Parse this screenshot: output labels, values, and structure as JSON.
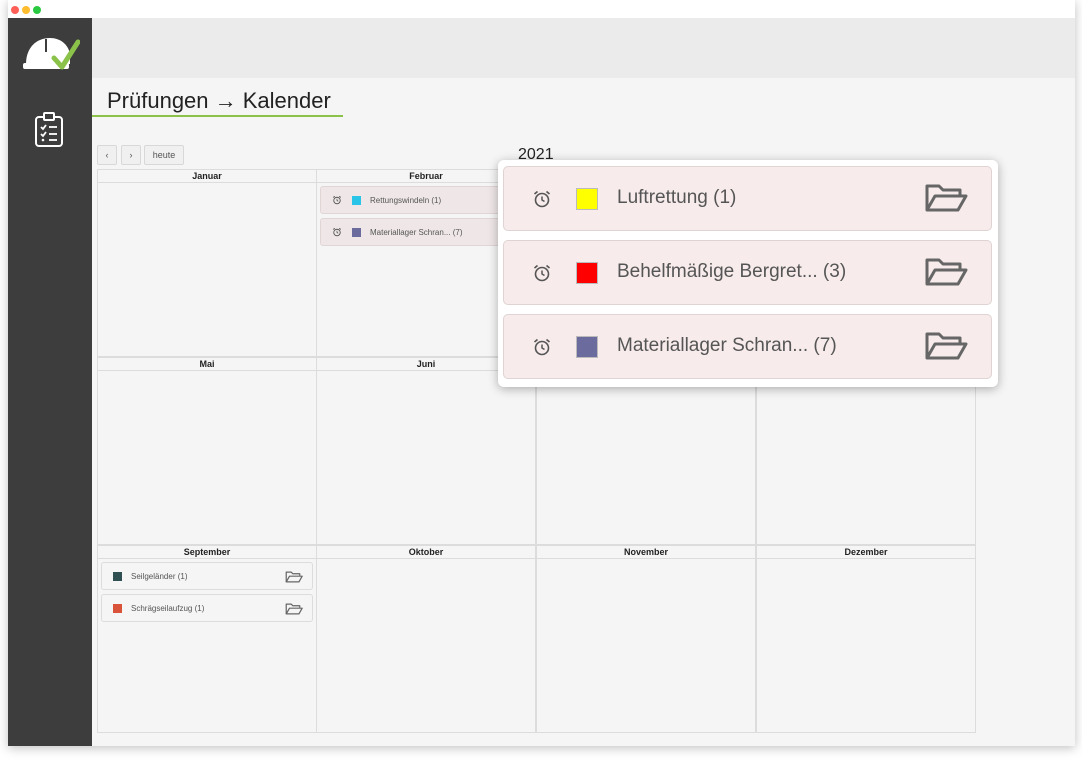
{
  "page": {
    "title": "Prüfungen → Kalender",
    "year": "2021"
  },
  "toolbar": {
    "prev_label": "‹",
    "next_label": "›",
    "today_label": "heute"
  },
  "months": {
    "jan": "Januar",
    "feb": "Februar",
    "may": "Mai",
    "jun": "Juni",
    "sep": "September",
    "oct": "Oktober",
    "nov": "November",
    "dec": "Dezember"
  },
  "february_items": [
    {
      "label": "Rettungswindeln (1)",
      "color": "#29c4e8"
    },
    {
      "label": "Materiallager Schran... (7)",
      "color": "#6b6b9e"
    }
  ],
  "september_items": [
    {
      "label": "Seilgeländer (1)",
      "color": "#2f4f52"
    },
    {
      "label": "Schrägseilaufzug (1)",
      "color": "#d9533a"
    }
  ],
  "popup_items": [
    {
      "label": "Luftrettung (1)",
      "color": "#ffff00"
    },
    {
      "label": "Behelfmäßige Bergret... (3)",
      "color": "#ff0000"
    },
    {
      "label": "Materiallager Schran... (7)",
      "color": "#6b6b9e"
    }
  ],
  "icons": {
    "logo": "hardhat-check-icon",
    "nav": "clipboard-checklist-icon",
    "alarm": "alarm-clock-icon",
    "folder": "folder-open-icon"
  },
  "colors": {
    "sidebar": "#3d3d3d",
    "accent": "#8bc34a"
  }
}
